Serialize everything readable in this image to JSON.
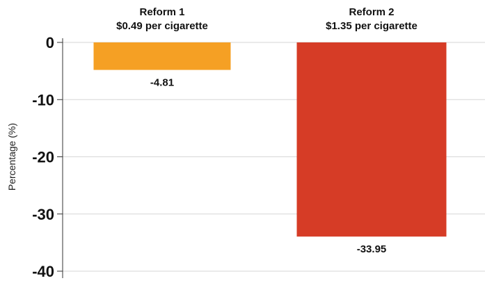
{
  "chart_data": {
    "type": "bar",
    "categories": [
      [
        "Reform 1",
        "$0.49 per cigarette"
      ],
      [
        "Reform 2",
        "$1.35 per cigarette"
      ]
    ],
    "values": [
      -4.81,
      -33.95
    ],
    "value_labels": [
      "-4.81",
      "-33.95"
    ],
    "colors": [
      "#f5a024",
      "#d63c26"
    ],
    "title": "",
    "xlabel": "",
    "ylabel": "Percentage (%)",
    "ylim": [
      -40,
      0
    ],
    "yticks": [
      0,
      -10,
      -20,
      -30,
      -40
    ],
    "grid": true,
    "legend": "none"
  }
}
